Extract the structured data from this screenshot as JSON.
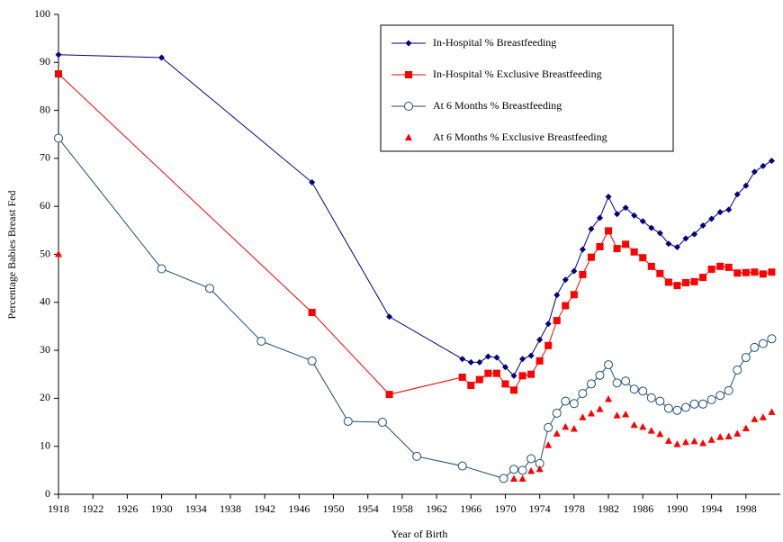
{
  "chart_data": {
    "type": "line",
    "xlabel": "Year of Birth",
    "ylabel": "Percentage Babies Breast Fed",
    "xlim": [
      1918,
      2002
    ],
    "xticks": [
      1918,
      1922,
      1926,
      1930,
      1934,
      1938,
      1942,
      1946,
      1950,
      1954,
      1958,
      1962,
      1966,
      1970,
      1974,
      1978,
      1982,
      1986,
      1990,
      1994,
      1998
    ],
    "ylim": [
      0,
      100
    ],
    "yticks": [
      0,
      10,
      20,
      30,
      40,
      50,
      60,
      70,
      80,
      90,
      100
    ],
    "legend": "upper center",
    "series": [
      {
        "name": "In-Hospital % Breastfeeding",
        "color": "#000080",
        "marker": "diamond",
        "line": true,
        "x": [
          1918,
          1930,
          1947.5,
          1956.5,
          1965,
          1966,
          1967,
          1968,
          1969,
          1970,
          1971,
          1972,
          1973,
          1974,
          1975,
          1976,
          1977,
          1978,
          1979,
          1980,
          1981,
          1982,
          1983,
          1984,
          1985,
          1986,
          1987,
          1988,
          1989,
          1990,
          1991,
          1992,
          1993,
          1994,
          1995,
          1996,
          1997,
          1998,
          1999,
          2000,
          2001
        ],
        "values": [
          91.6,
          91,
          65,
          37,
          28.2,
          27.5,
          27.5,
          28.7,
          28.5,
          26.5,
          24.7,
          28.2,
          28.9,
          32.2,
          35.5,
          41.5,
          44.7,
          46.5,
          51,
          55.3,
          57.6,
          62,
          58.4,
          59.7,
          58.1,
          56.9,
          55.5,
          54.4,
          52.2,
          51.5,
          53.3,
          54.2,
          56,
          57.4,
          58.8,
          59.3,
          62.5,
          64.3,
          67.2,
          68.4,
          69.5
        ]
      },
      {
        "name": "In-Hospital % Exclusive Breastfeeding",
        "color": "#ff0000",
        "marker": "square",
        "line": true,
        "x": [
          1918,
          1947.5,
          1956.5,
          1965,
          1966,
          1967,
          1968,
          1969,
          1970,
          1971,
          1972,
          1973,
          1974,
          1975,
          1976,
          1977,
          1978,
          1979,
          1980,
          1981,
          1982,
          1983,
          1984,
          1985,
          1986,
          1987,
          1988,
          1989,
          1990,
          1991,
          1992,
          1993,
          1994,
          1995,
          1996,
          1997,
          1998,
          1999,
          2000,
          2001
        ],
        "values": [
          87.6,
          37.9,
          20.8,
          24.4,
          22.7,
          23.9,
          25.2,
          25.2,
          23,
          21.7,
          24.7,
          25,
          27.8,
          31,
          36.2,
          39.3,
          41.6,
          45.8,
          49.4,
          51.6,
          54.9,
          51.2,
          52.1,
          50.5,
          49.3,
          47.5,
          46,
          44.2,
          43.5,
          44.1,
          44.3,
          45.2,
          46.9,
          47.5,
          47.3,
          46.1,
          46.2,
          46.3,
          45.9,
          46.3
        ]
      },
      {
        "name": "At 6 Months % Breastfeeding",
        "color": "#1f4e79",
        "marker": "circle",
        "line": true,
        "x": [
          1918,
          1930,
          1935.6,
          1941.6,
          1947.5,
          1951.7,
          1955.7,
          1959.7,
          1965,
          1969.8,
          1971,
          1972,
          1973,
          1974,
          1975,
          1976,
          1977,
          1978,
          1979,
          1980,
          1981,
          1982,
          1983,
          1984,
          1985,
          1986,
          1987,
          1988,
          1989,
          1990,
          1991,
          1992,
          1993,
          1994,
          1995,
          1996,
          1997,
          1998,
          1999,
          2000,
          2001
        ],
        "values": [
          74.2,
          47,
          42.9,
          31.9,
          27.8,
          15.2,
          15,
          7.9,
          5.9,
          3.3,
          5.2,
          5,
          7.4,
          6.4,
          13.9,
          16.9,
          19.4,
          18.9,
          21,
          23,
          24.8,
          27,
          23.2,
          23.6,
          21.9,
          21.5,
          20.1,
          19.4,
          17.9,
          17.5,
          18.1,
          18.8,
          18.8,
          19.7,
          20.6,
          21.6,
          25.9,
          28.5,
          30.6,
          31.4,
          32.4
        ]
      },
      {
        "name": "At 6 Months % Exclusive Breastfeeding",
        "color": "#ff0000",
        "marker": "triangle",
        "line": false,
        "x": [
          1918,
          1971,
          1972,
          1973,
          1974,
          1975,
          1976,
          1977,
          1978,
          1979,
          1980,
          1981,
          1982,
          1983,
          1984,
          1985,
          1986,
          1987,
          1988,
          1989,
          1990,
          1991,
          1992,
          1993,
          1994,
          1995,
          1996,
          1997,
          1998,
          1999,
          2000,
          2001
        ],
        "values": [
          50,
          3.2,
          3.2,
          4.8,
          5.2,
          10.2,
          12.6,
          14,
          13.6,
          16,
          16.8,
          17.7,
          19.8,
          16.4,
          16.6,
          14.4,
          14,
          13.2,
          12.5,
          11.1,
          10.4,
          10.8,
          11,
          10.6,
          11.3,
          11.9,
          12,
          12.6,
          13.7,
          15.6,
          16,
          17.1
        ]
      }
    ]
  }
}
